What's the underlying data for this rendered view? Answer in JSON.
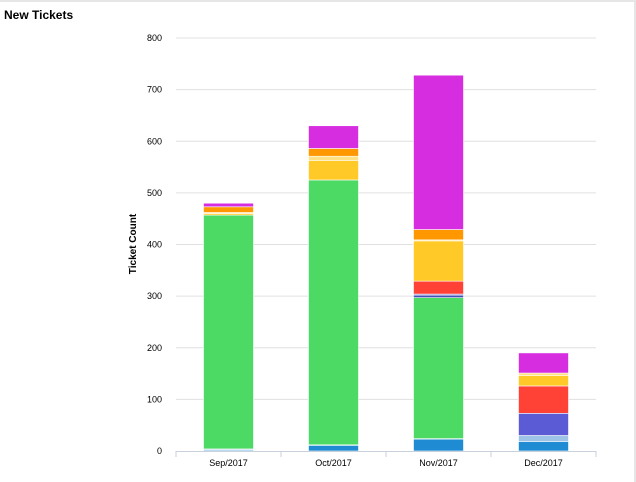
{
  "panel": {
    "title": "New Tickets"
  },
  "colors": {
    "s1": "#1f8bd3",
    "s2": "#9dc3e6",
    "s3": "#4cd964",
    "s4": "#3f51b5",
    "s5": "#5b5bd6",
    "s6": "#ff4136",
    "s7": "#ffca28",
    "s8": "#ffe082",
    "s9": "#ff9800",
    "s10": "#d62de0"
  },
  "chart_data": {
    "type": "bar",
    "stacked": true,
    "title": "",
    "xlabel": "",
    "ylabel": "Ticket Count",
    "ylim": [
      0,
      800
    ],
    "yticks": [
      0,
      100,
      200,
      300,
      400,
      500,
      600,
      700,
      800
    ],
    "categories": [
      "Sep/2017",
      "Oct/2017",
      "Nov/2017",
      "Dec/2017"
    ],
    "series": [
      {
        "color": "#1f8bd3",
        "values": [
          2,
          11,
          23,
          18
        ]
      },
      {
        "color": "#9dc3e6",
        "values": [
          2,
          1,
          1,
          12
        ]
      },
      {
        "color": "#4cd964",
        "values": [
          453,
          513,
          273,
          0
        ]
      },
      {
        "color": "#3f51b5",
        "values": [
          0,
          0,
          5,
          0
        ]
      },
      {
        "color": "#5b5bd6",
        "values": [
          0,
          0,
          2,
          43
        ]
      },
      {
        "color": "#ff4136",
        "values": [
          0,
          0,
          25,
          53
        ]
      },
      {
        "color": "#ffca28",
        "values": [
          3,
          38,
          78,
          20
        ]
      },
      {
        "color": "#ffe082",
        "values": [
          2,
          8,
          2,
          5
        ]
      },
      {
        "color": "#ff9800",
        "values": [
          11,
          15,
          20,
          0
        ]
      },
      {
        "color": "#d62de0",
        "values": [
          7,
          44,
          299,
          39
        ]
      }
    ],
    "grid": true,
    "legend": "none"
  }
}
